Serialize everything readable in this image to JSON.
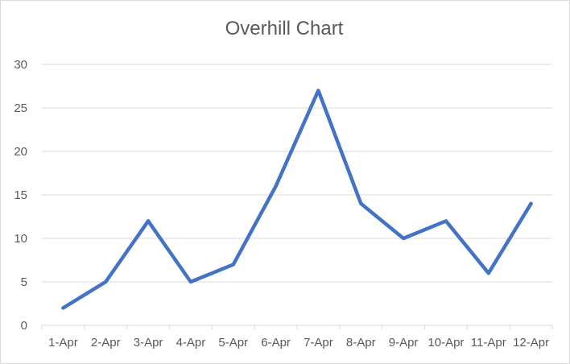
{
  "chart_data": {
    "type": "line",
    "title": "Overhill Chart",
    "xlabel": "",
    "ylabel": "",
    "categories": [
      "1-Apr",
      "2-Apr",
      "3-Apr",
      "4-Apr",
      "5-Apr",
      "6-Apr",
      "7-Apr",
      "8-Apr",
      "9-Apr",
      "10-Apr",
      "11-Apr",
      "12-Apr"
    ],
    "series": [
      {
        "values": [
          2,
          5,
          12,
          5,
          7,
          16,
          27,
          14,
          10,
          12,
          6,
          14
        ],
        "color": "#4472c4"
      }
    ],
    "ylim": [
      0,
      30
    ],
    "yticks": [
      0,
      5,
      10,
      15,
      20,
      25,
      30
    ],
    "grid": "horizontal",
    "legend": "none"
  }
}
